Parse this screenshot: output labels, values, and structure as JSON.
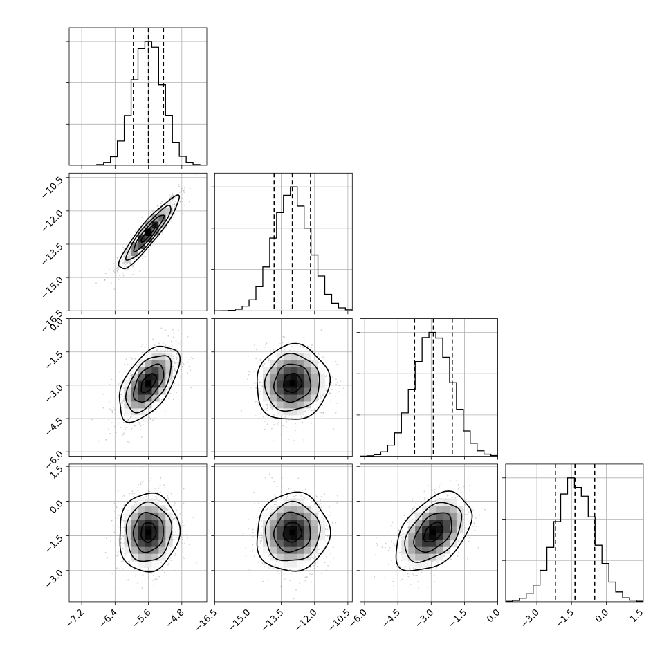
{
  "chart_data": {
    "type": "scatter",
    "title": "",
    "description_free": true,
    "grid": true,
    "parameters": [
      {
        "index": 0,
        "mean": -5.6,
        "sd": 0.36,
        "quantiles": [
          -5.96,
          -5.6,
          -5.24
        ],
        "range": [
          -7.5,
          -4.2
        ],
        "ticks": [
          -7.2,
          -6.4,
          -5.6,
          -4.8
        ],
        "tick_labels": [
          "−7.2",
          "−6.4",
          "−5.6",
          "−4.8"
        ]
      },
      {
        "index": 1,
        "mean": -13.0,
        "sd": 0.82,
        "quantiles": [
          -13.82,
          -13.0,
          -12.18
        ],
        "range": [
          -16.5,
          -10.3
        ],
        "ticks": [
          -16.5,
          -15.0,
          -13.5,
          -12.0,
          -10.5
        ],
        "tick_labels": [
          "−16.5",
          "−15.0",
          "−13.5",
          "−12.0",
          "−10.5"
        ]
      },
      {
        "index": 2,
        "mean": -2.9,
        "sd": 0.85,
        "quantiles": [
          -3.75,
          -2.9,
          -2.05
        ],
        "range": [
          -6.2,
          0.0
        ],
        "ticks": [
          -6.0,
          -4.5,
          -3.0,
          -1.5,
          0.0
        ],
        "tick_labels": [
          "−6.0",
          "−4.5",
          "−3.0",
          "−1.5",
          "0.0"
        ]
      },
      {
        "index": 3,
        "mean": -1.35,
        "sd": 0.85,
        "quantiles": [
          -2.2,
          -1.35,
          -0.5
        ],
        "range": [
          -4.35,
          1.6
        ],
        "ticks": [
          -3.0,
          -1.5,
          0.0,
          1.5
        ],
        "tick_labels": [
          "−3.0",
          "−1.5",
          "0.0",
          "1.5"
        ]
      }
    ],
    "correlations": {
      "1-0": 0.92,
      "2-0": 0.55,
      "2-1": 0.05,
      "3-0": 0.05,
      "3-1": 0.05,
      "3-2": 0.45
    },
    "contour_levels_sigma": [
      0.5,
      1.0,
      1.5,
      2.0
    ],
    "histogram": {
      "bins": 20,
      "style": "step"
    },
    "quantile_line_style": "dashed"
  }
}
